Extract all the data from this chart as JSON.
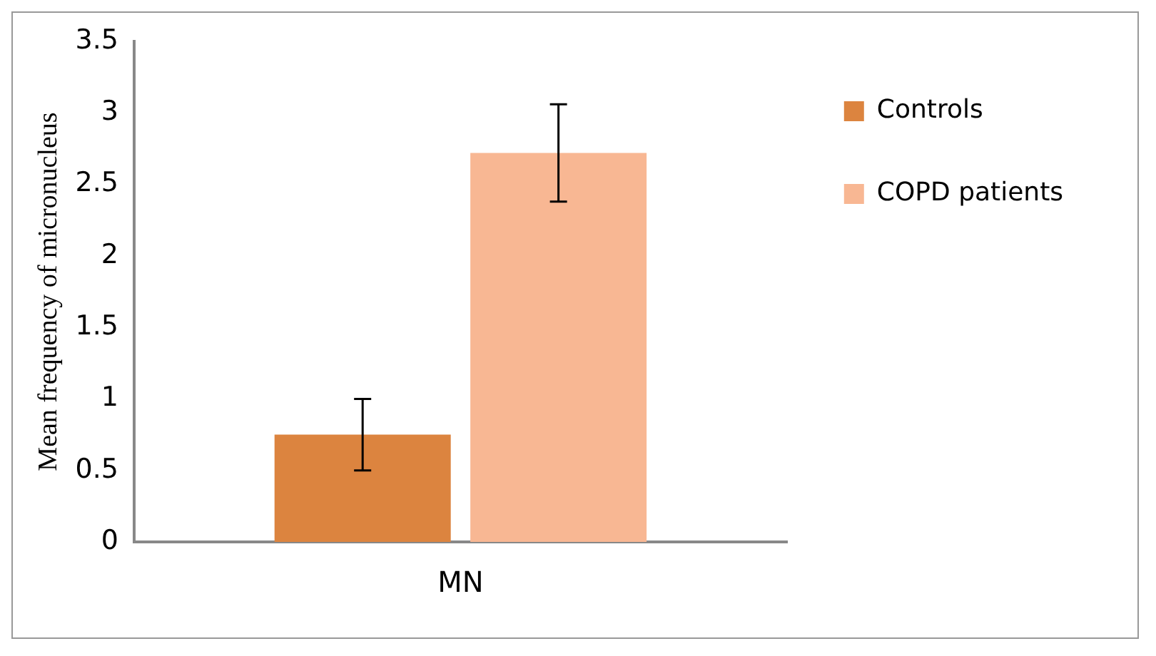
{
  "chart_data": {
    "type": "bar",
    "ylabel": "Mean frequency of micronucleus",
    "categories": [
      "MN"
    ],
    "series": [
      {
        "name": "Controls",
        "color": "#dc843f",
        "values": [
          0.75
        ],
        "errors": [
          0.25
        ]
      },
      {
        "name": "COPD patients",
        "color": "#f8b793",
        "values": [
          2.72
        ],
        "errors": [
          [
            2.38,
            3.06
          ]
        ]
      }
    ],
    "ylim": [
      0,
      3.5
    ],
    "yticks": [
      0,
      0.5,
      1,
      1.5,
      2,
      2.5,
      3,
      3.5
    ],
    "grid": false,
    "legend": "right"
  }
}
